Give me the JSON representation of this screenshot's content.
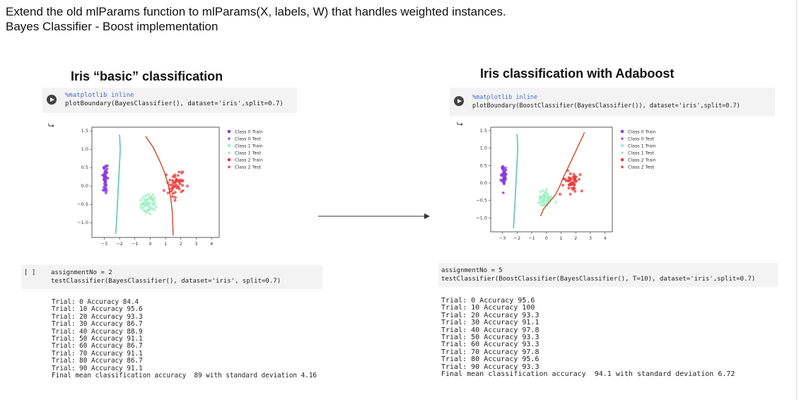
{
  "heading": {
    "line1": "Extend the old mlParams function to mlParams(X, labels, W) that handles weighted instances.",
    "line2": "Bayes Classifier - Boost implementation"
  },
  "left": {
    "title": "Iris “basic” classification",
    "cell1_line1": "%matplotlib inline",
    "cell1_line2": "plotBoundary(BayesClassifier(), dataset='iris',split=0.7)",
    "prompt": "[ ]",
    "cell2_line1": "assignmentNo = 2",
    "cell2_line2": "testClassifier(BayesClassifier(), dataset='iris', split=0.7)",
    "output": "Trial: 0 Accuracy 84.4\nTrial: 10 Accuracy 95.6\nTrial: 20 Accuracy 93.3\nTrial: 30 Accuracy 86.7\nTrial: 40 Accuracy 88.9\nTrial: 50 Accuracy 91.1\nTrial: 60 Accuracy 86.7\nTrial: 70 Accuracy 91.1\nTrial: 80 Accuracy 86.7\nTrial: 90 Accuracy 91.1\nFinal mean classification accuracy  89 with standard deviation 4.16"
  },
  "right": {
    "title": "Iris classification with Adaboost",
    "cell1_line1": "%matplotlib inline",
    "cell1_line2": "plotBoundary(BoostClassifier(BayesClassifier()), dataset='iris',split=0.7)",
    "cell2_line1": "assignmentNo = 5",
    "cell2_line2": "testClassifier(BoostClassifier(BayesClassifier(), T=10), dataset='iris',split=0.7)",
    "output": "Trial: 0 Accuracy 95.6\nTrial: 10 Accuracy 100\nTrial: 20 Accuracy 93.3\nTrial: 30 Accuracy 91.1\nTrial: 40 Accuracy 97.8\nTrial: 50 Accuracy 93.3\nTrial: 60 Accuracy 93.3\nTrial: 70 Accuracy 97.8\nTrial: 80 Accuracy 95.6\nTrial: 90 Accuracy 93.3\nFinal mean classification accuracy  94.1 with standard deviation 6.72"
  },
  "chart_data": [
    {
      "type": "scatter",
      "xlim": [
        -3.8,
        4.5
      ],
      "ylim": [
        -1.4,
        1.6
      ],
      "xticks": [
        "−3",
        "−2",
        "−1",
        "0",
        "1",
        "2",
        "3",
        "4"
      ],
      "yticks": [
        "−1.0",
        "−0.5",
        "0.0",
        "0.5",
        "1.0",
        "1.5"
      ],
      "legend": [
        "Class 0 Train",
        "Class 0 Test",
        "Class 1 Train",
        "Class 1 Test",
        "Class 2 Train",
        "Class 2 Test"
      ],
      "legend_position": "top-right",
      "colors": [
        "#8b3bd9",
        "#7f3fe0",
        "#9ff0c4",
        "#8ee8b8",
        "#ee3b3b",
        "#e02020"
      ]
    },
    {
      "type": "scatter",
      "xlim": [
        -3.8,
        4.5
      ],
      "ylim": [
        -1.4,
        1.6
      ],
      "xticks": [
        "−3",
        "−2",
        "−1",
        "0",
        "1",
        "2",
        "3",
        "4"
      ],
      "yticks": [
        "−1.0",
        "−0.5",
        "0.0",
        "0.5",
        "1.0",
        "1.5"
      ],
      "legend": [
        "Class 0 Train",
        "Class 0 Test",
        "Class 1 Train",
        "Class 1 Test",
        "Class 2 Train",
        "Class 2 Test"
      ],
      "legend_position": "top-right",
      "colors": [
        "#8b3bd9",
        "#7f3fe0",
        "#9ff0c4",
        "#8ee8b8",
        "#ee3b3b",
        "#e02020"
      ]
    }
  ]
}
